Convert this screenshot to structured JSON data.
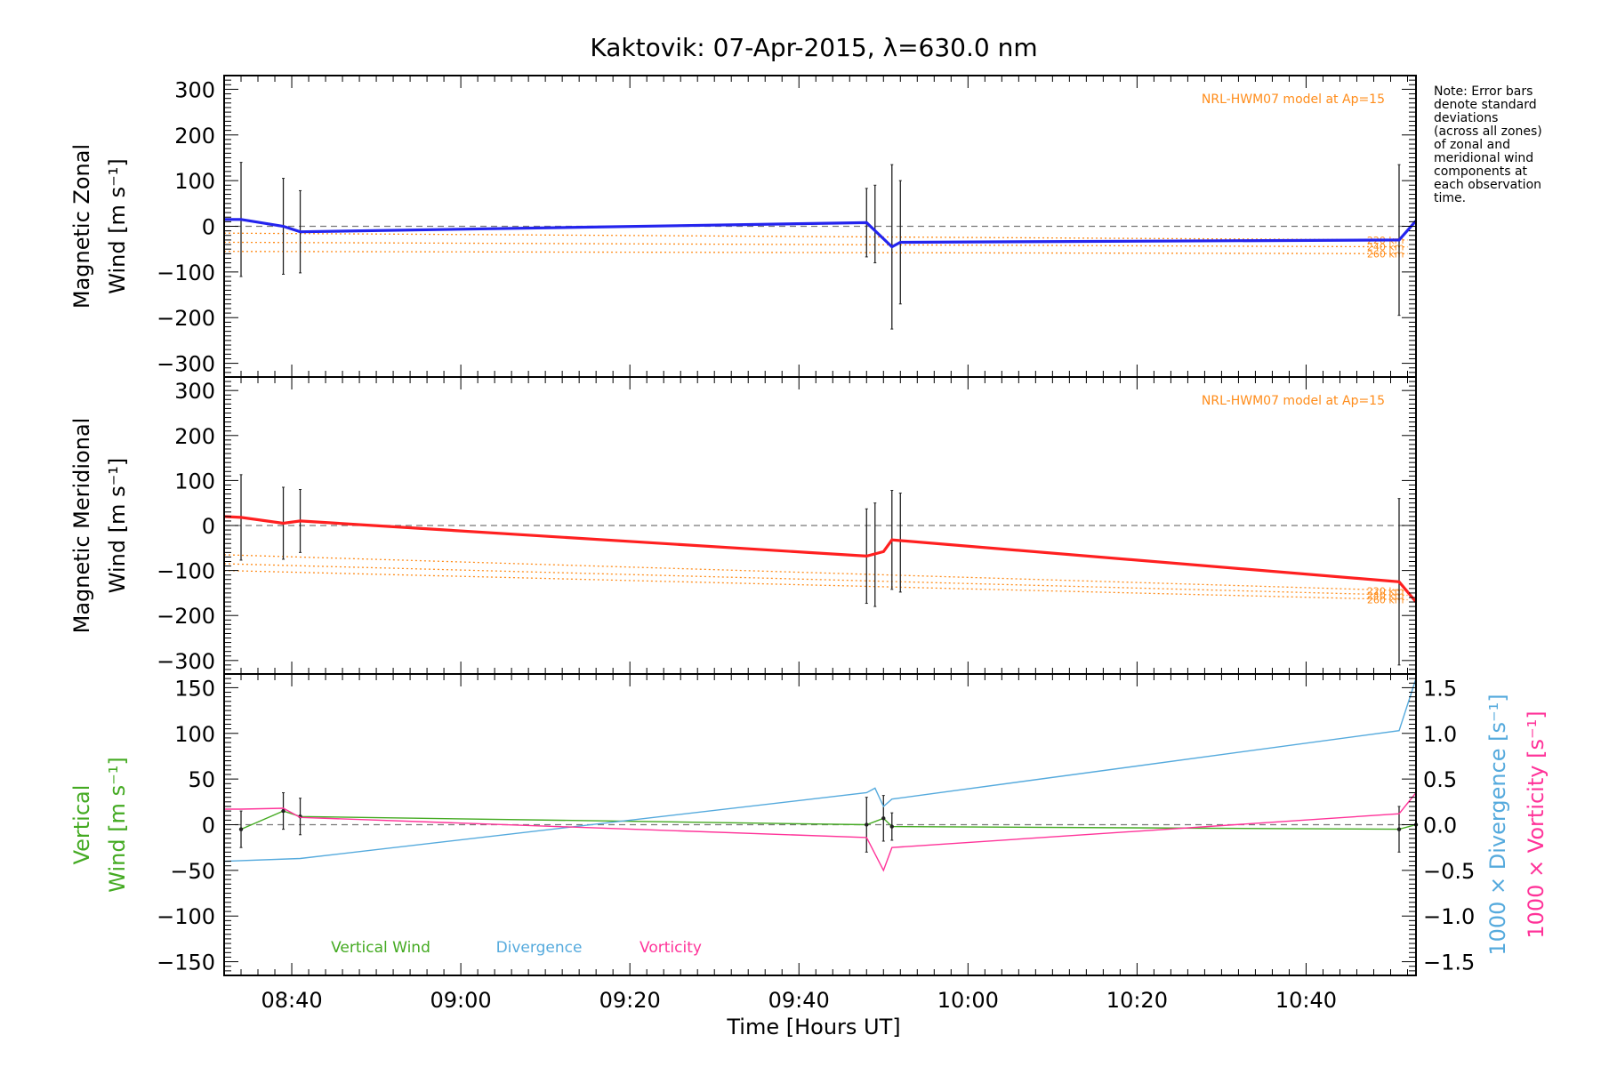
{
  "title": "Kaktovik: 07-Apr-2015, λ=630.0 nm",
  "xlabel": "Time [Hours UT]",
  "x_ticks": [
    "08:40",
    "09:00",
    "09:20",
    "09:40",
    "10:00",
    "10:20",
    "10:40"
  ],
  "note": [
    "Note: Error bars",
    "denote standard",
    "deviations",
    "(across all zones)",
    "of zonal and",
    "meridional wind",
    "components at",
    "each observation",
    "time."
  ],
  "colors": {
    "zonal": "#2424ee",
    "meridional": "#ff2020",
    "vertical": "#44aa22",
    "divergence": "#55aadd",
    "vorticity": "#ff3399",
    "model": "#ff8c1a",
    "axes": "#000000",
    "zero_line": "#777777"
  },
  "chart_data": [
    {
      "type": "line",
      "ylabel_line1": "Magnetic Zonal",
      "ylabel_line2": "Wind [m s⁻¹]",
      "ylim": [
        -330,
        330
      ],
      "y_ticks": [
        300,
        200,
        100,
        0,
        -100,
        -200,
        -300
      ],
      "xlim": [
        "08:32",
        "10:53"
      ],
      "model_label": "NRL-HWM07 model at Ap=15",
      "series": [
        {
          "key": "zonal",
          "x": [
            "08:32",
            "08:34",
            "08:39",
            "08:41",
            "09:48",
            "09:51",
            "09:52",
            "10:51",
            "10:53"
          ],
          "values": [
            15,
            15,
            0,
            -12,
            8,
            -45,
            -35,
            -30,
            12
          ]
        }
      ],
      "model": [
        {
          "label": "220 km",
          "x": [
            "08:32",
            "10:52"
          ],
          "values": [
            -15,
            -30
          ]
        },
        {
          "label": "240 km",
          "x": [
            "08:32",
            "10:52"
          ],
          "values": [
            -35,
            -45
          ]
        },
        {
          "label": "260 km",
          "x": [
            "08:32",
            "10:52"
          ],
          "values": [
            -55,
            -60
          ]
        }
      ],
      "error_bars": [
        {
          "x": "08:34",
          "y": 15,
          "err": 125
        },
        {
          "x": "08:39",
          "y": 0,
          "err": 105
        },
        {
          "x": "08:41",
          "y": -12,
          "err": 90
        },
        {
          "x": "09:48",
          "y": 8,
          "err": 75
        },
        {
          "x": "09:49",
          "y": 5,
          "err": 85
        },
        {
          "x": "09:51",
          "y": -45,
          "err": 180
        },
        {
          "x": "09:52",
          "y": -35,
          "err": 135
        },
        {
          "x": "10:51",
          "y": -30,
          "err": 165
        }
      ]
    },
    {
      "type": "line",
      "ylabel_line1": "Magnetic Meridional",
      "ylabel_line2": "Wind [m s⁻¹]",
      "ylim": [
        -330,
        330
      ],
      "y_ticks": [
        300,
        200,
        100,
        0,
        -100,
        -200,
        -300
      ],
      "xlim": [
        "08:32",
        "10:53"
      ],
      "model_label": "NRL-HWM07 model at Ap=15",
      "series": [
        {
          "key": "meridional",
          "x": [
            "08:32",
            "08:34",
            "08:39",
            "08:41",
            "09:48",
            "09:50",
            "09:51",
            "10:51",
            "10:53"
          ],
          "values": [
            20,
            18,
            5,
            10,
            -68,
            -58,
            -32,
            -125,
            -170
          ]
        }
      ],
      "model": [
        {
          "label": "220 km",
          "x": [
            "08:32",
            "10:52"
          ],
          "values": [
            -65,
            -145
          ]
        },
        {
          "label": "240 km",
          "x": [
            "08:32",
            "10:52"
          ],
          "values": [
            -85,
            -155
          ]
        },
        {
          "label": "260 km",
          "x": [
            "08:32",
            "10:52"
          ],
          "values": [
            -100,
            -165
          ]
        }
      ],
      "error_bars": [
        {
          "x": "08:34",
          "y": 18,
          "err": 95
        },
        {
          "x": "08:39",
          "y": 5,
          "err": 80
        },
        {
          "x": "08:41",
          "y": 10,
          "err": 70
        },
        {
          "x": "09:48",
          "y": -68,
          "err": 105
        },
        {
          "x": "09:49",
          "y": -65,
          "err": 115
        },
        {
          "x": "09:51",
          "y": -32,
          "err": 110
        },
        {
          "x": "09:52",
          "y": -38,
          "err": 110
        },
        {
          "x": "10:51",
          "y": -125,
          "err": 185
        }
      ]
    },
    {
      "type": "line",
      "ylabel_line1": "Vertical",
      "ylabel_line2": "Wind [m s⁻¹]",
      "ylim": [
        -165,
        165
      ],
      "y_ticks": [
        150,
        100,
        50,
        0,
        -50,
        -100,
        -150
      ],
      "y2label_line1": "1000 × Divergence [s⁻¹]",
      "y2label_line2": "1000 × Vorticity [s⁻¹]",
      "y2lim": [
        -1.65,
        1.65
      ],
      "y2_ticks": [
        "1.5",
        "1.0",
        "0.5",
        "0.0",
        "-0.5",
        "-1.0",
        "-1.5"
      ],
      "y2_tick_values": [
        1.5,
        1.0,
        0.5,
        0.0,
        -0.5,
        -1.0,
        -1.5
      ],
      "xlim": [
        "08:32",
        "10:53"
      ],
      "legend": [
        "Vertical Wind",
        "Divergence",
        "Vorticity"
      ],
      "series": [
        {
          "key": "vertical",
          "name": "Vertical Wind",
          "axis": "left",
          "x": [
            "08:34",
            "08:39",
            "08:41",
            "09:48",
            "09:50",
            "09:51",
            "10:51",
            "10:53"
          ],
          "values": [
            -5,
            15,
            9,
            0,
            7,
            -2,
            -5,
            0
          ]
        },
        {
          "key": "divergence",
          "name": "Divergence",
          "axis": "right",
          "x": [
            "08:32",
            "08:41",
            "09:48",
            "09:49",
            "09:50",
            "09:51",
            "10:51",
            "10:53"
          ],
          "values": [
            -0.4,
            -0.37,
            0.35,
            0.4,
            0.2,
            0.28,
            1.03,
            1.6
          ]
        },
        {
          "key": "vorticity",
          "name": "Vorticity",
          "axis": "right",
          "x": [
            "08:32",
            "08:34",
            "08:39",
            "08:41",
            "09:48",
            "09:50",
            "09:51",
            "10:51",
            "10:53"
          ],
          "values": [
            0.17,
            0.17,
            0.18,
            0.08,
            -0.14,
            -0.5,
            -0.25,
            0.12,
            0.35
          ]
        }
      ],
      "error_bars": [
        {
          "x": "08:34",
          "y": -5,
          "err": 20
        },
        {
          "x": "08:39",
          "y": 15,
          "err": 20
        },
        {
          "x": "08:41",
          "y": 9,
          "err": 20
        },
        {
          "x": "09:48",
          "y": 0,
          "err": 30
        },
        {
          "x": "09:50",
          "y": 7,
          "err": 25
        },
        {
          "x": "09:51",
          "y": -2,
          "err": 15
        },
        {
          "x": "10:51",
          "y": -5,
          "err": 25
        }
      ]
    }
  ]
}
